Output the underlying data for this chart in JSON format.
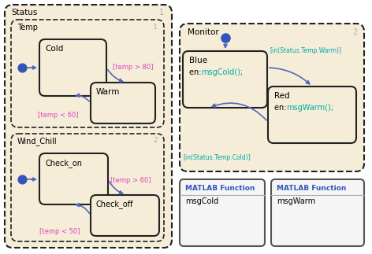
{
  "bg_color": "#f5edd8",
  "border_color": "#222222",
  "arrow_color": "#5566bb",
  "magenta_color": "#dd44bb",
  "teal_color": "#00aaaa",
  "blue_dot_color": "#3355bb",
  "number_color": "#aaaaaa",
  "matlab_title_color": "#3355bb",
  "status_label": "Status",
  "status_num": "1",
  "temp_label": "Temp",
  "temp_num": "1",
  "wind_label": "Wind_Chill",
  "wind_num": "2",
  "monitor_label": "Monitor",
  "monitor_num": "2",
  "cold_label": "Cold",
  "warm_label": "Warm",
  "checkon_label": "Check_on",
  "checkoff_label": "Check_off",
  "blue_label": "Blue",
  "blue_en": "en: ",
  "blue_fn": "msgCold();",
  "red_label": "Red",
  "red_en": "en: ",
  "red_fn": "msgWarm();",
  "guard_temp80": "[temp > 80]",
  "guard_temp60_less": "[temp < 60]",
  "guard_temp60": "[temp > 60]",
  "guard_temp50": "[temp < 50]",
  "guard_warm": "[in(Status.Temp.Warm)]",
  "guard_cold": "[in(Status.Temp.Cold)]",
  "matlab1_title": "MATLAB Function",
  "matlab1_name": "msgCold",
  "matlab2_title": "MATLAB Function",
  "matlab2_name": "msgWarm"
}
